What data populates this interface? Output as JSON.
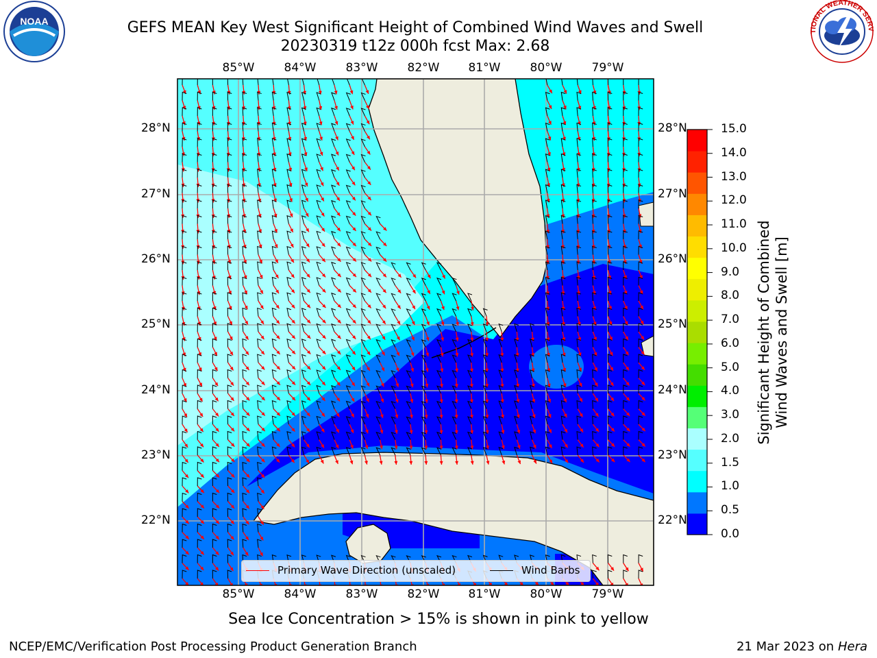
{
  "title_line1": "GEFS MEAN Key West Significant Height of Combined Wind Waves and Swell",
  "title_line2": "20230319 t12z 000h fcst   Max: 2.68",
  "logos": {
    "left": "NOAA",
    "right": "NATIONAL WEATHER SERVICE"
  },
  "map": {
    "lon_labels": [
      "85°W",
      "84°W",
      "83°W",
      "82°W",
      "81°W",
      "80°W",
      "79°W"
    ],
    "lat_labels": [
      "28°N",
      "27°N",
      "26°N",
      "25°N",
      "24°N",
      "23°N",
      "22°N"
    ],
    "colors": {
      "land": "#eeedde",
      "ocean_dark": "#0000ff",
      "ocean_mid": "#0077ff",
      "cyan": "#00ffff",
      "light_cyan": "#55ffff",
      "pale": "#aaffff",
      "wave_arrow": "#ff0000",
      "barb": "#000000"
    }
  },
  "legend": {
    "wave_label": "Primary Wave Direction (unscaled)",
    "barb_label": "Wind Barbs"
  },
  "colorbar": {
    "label_line1": "Significant Height of Combined",
    "label_line2": "Wind Waves and Swell [m]",
    "ticks": [
      "15.0",
      "14.0",
      "13.0",
      "12.0",
      "11.0",
      "10.0",
      "9.0",
      "8.0",
      "7.0",
      "6.0",
      "5.0",
      "4.0",
      "3.0",
      "2.0",
      "1.5",
      "1.0",
      "0.5",
      "0.0"
    ],
    "colors": [
      "#0000ff",
      "#0077ff",
      "#00ffff",
      "#55ffff",
      "#aaffff",
      "#55ff77",
      "#00ee00",
      "#44dd00",
      "#77ee00",
      "#aadd00",
      "#ccee00",
      "#eeee00",
      "#ffff00",
      "#ffdd00",
      "#ffbb00",
      "#ff8800",
      "#ff5500",
      "#ff2200",
      "#ff0000"
    ]
  },
  "subtitle": "Sea Ice Concentration > 15% is shown in pink to yellow",
  "footer_left": "NCEP/EMC/Verification Post Processing Product Generation Branch",
  "footer_date": "21 Mar 2023 on",
  "footer_host": "Hera"
}
